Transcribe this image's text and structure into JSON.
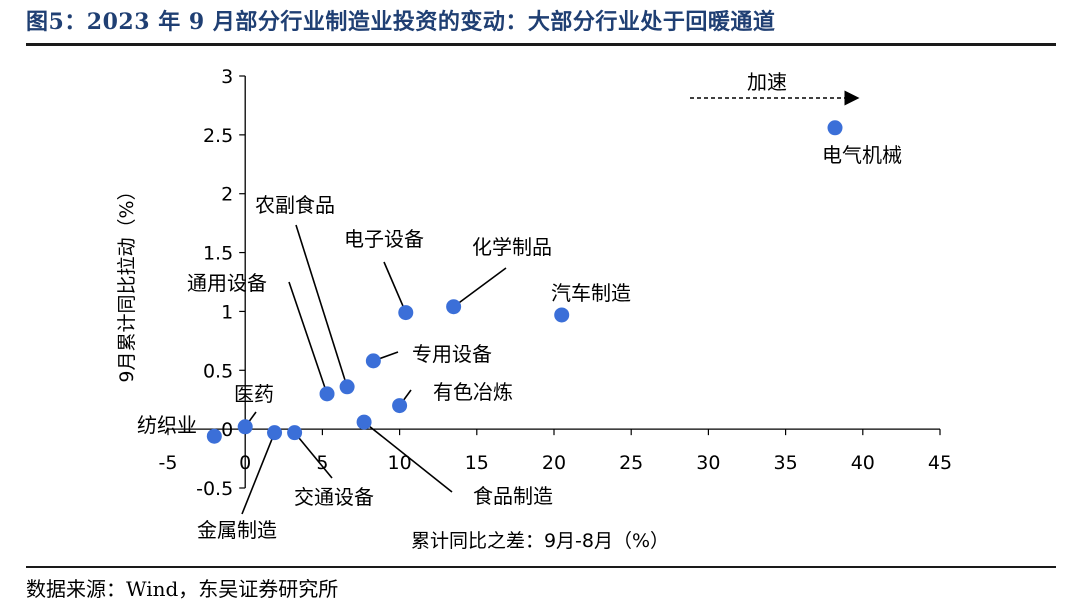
{
  "title": "图5：2023 年 9 月部分行业制造业投资的变动：大部分行业处于回暖通道",
  "source": "数据来源：Wind，东吴证券研究所",
  "colors": {
    "point": "#3b6fd8",
    "title": "#1f3f73",
    "axis": "#000000"
  },
  "chart_data": {
    "type": "scatter",
    "xlabel": "累计同比之差：9月-8月（%）",
    "ylabel": "9月累计同比拉动（%）",
    "xlim": [
      -5,
      45
    ],
    "ylim": [
      -0.5,
      3
    ],
    "x_ticks": [
      -5,
      0,
      5,
      10,
      15,
      20,
      25,
      30,
      35,
      40,
      45
    ],
    "y_ticks": [
      -0.5,
      0,
      0.5,
      1,
      1.5,
      2,
      2.5,
      3
    ],
    "annotation": {
      "text": "加速",
      "arrow": "right"
    },
    "points": [
      {
        "name": "电气机械",
        "x": 38.2,
        "y": 2.56
      },
      {
        "name": "化学制品",
        "x": 13.5,
        "y": 1.04
      },
      {
        "name": "电子设备",
        "x": 10.4,
        "y": 0.99
      },
      {
        "name": "汽车制造",
        "x": 20.5,
        "y": 0.97
      },
      {
        "name": "专用设备",
        "x": 8.3,
        "y": 0.58
      },
      {
        "name": "农副食品",
        "x": 6.6,
        "y": 0.36
      },
      {
        "name": "通用设备",
        "x": 5.3,
        "y": 0.3
      },
      {
        "name": "有色冶炼",
        "x": 10.0,
        "y": 0.2
      },
      {
        "name": "食品制造",
        "x": 7.7,
        "y": 0.06
      },
      {
        "name": "医药",
        "x": 0.0,
        "y": 0.02
      },
      {
        "name": "交通设备",
        "x": 3.2,
        "y": -0.03
      },
      {
        "name": "金属制造",
        "x": 1.9,
        "y": -0.03
      },
      {
        "name": "纺织业",
        "x": -2.0,
        "y": -0.06
      }
    ]
  }
}
